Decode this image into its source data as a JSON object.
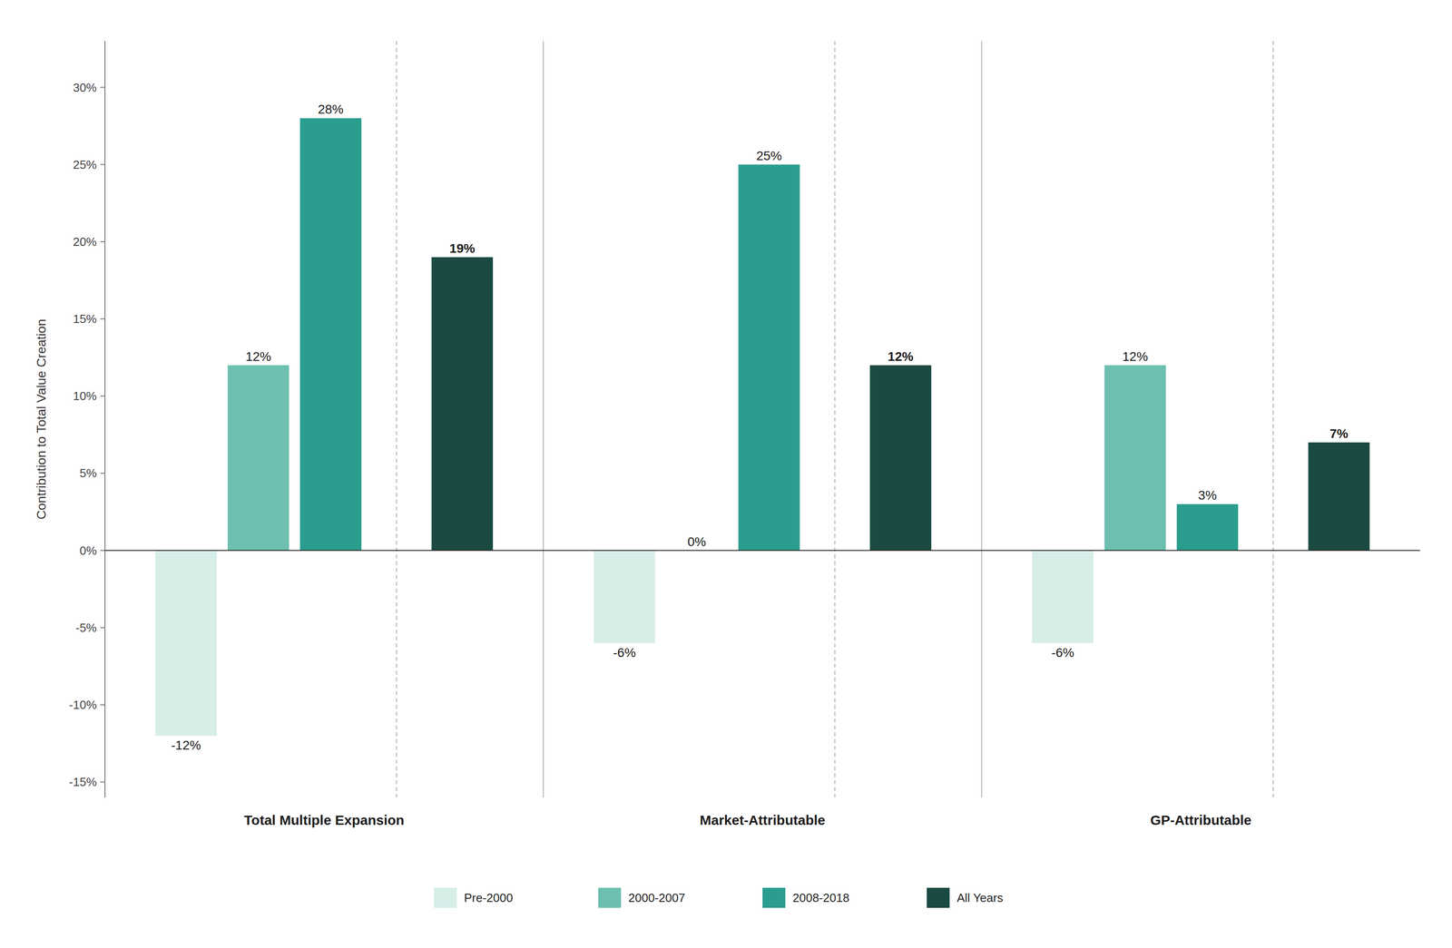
{
  "chart_data": {
    "type": "bar",
    "categories": [
      "Total Multiple Expansion",
      "Market-Attributable",
      "GP-Attributable"
    ],
    "series": [
      {
        "name": "Pre-2000",
        "color": "#d6ede8",
        "values": [
          -12,
          -6,
          -6
        ],
        "value_labels": [
          "-12%",
          "-6%",
          "-6%"
        ]
      },
      {
        "name": "2000-2007",
        "color": "#6dbfb0",
        "values": [
          12,
          0,
          12
        ],
        "value_labels": [
          "12%",
          "0%",
          "12%"
        ]
      },
      {
        "name": "2008-2018",
        "color": "#2a9d8f",
        "values": [
          28,
          25,
          3
        ],
        "value_labels": [
          "28%",
          "25%",
          "3%"
        ]
      },
      {
        "name": "All Years",
        "color": "#1a4a42",
        "values": [
          19,
          12,
          7
        ],
        "value_labels": [
          "19%",
          "12%",
          "7%"
        ]
      }
    ],
    "y_label": "Contribution to Total Value Creation",
    "ylim": [
      -16,
      33
    ],
    "yticks": [
      {
        "value": -15,
        "label": "-15%"
      },
      {
        "value": -10,
        "label": "-10%"
      },
      {
        "value": -5,
        "label": "-5%"
      },
      {
        "value": 0,
        "label": "0%"
      },
      {
        "value": 5,
        "label": "5%"
      },
      {
        "value": 10,
        "label": "10%"
      },
      {
        "value": 15,
        "label": "15%"
      },
      {
        "value": 20,
        "label": "20%"
      },
      {
        "value": 25,
        "label": "25%"
      },
      {
        "value": 30,
        "label": "30%"
      }
    ],
    "grid": false,
    "legend": "bottom",
    "data_labels": true
  }
}
